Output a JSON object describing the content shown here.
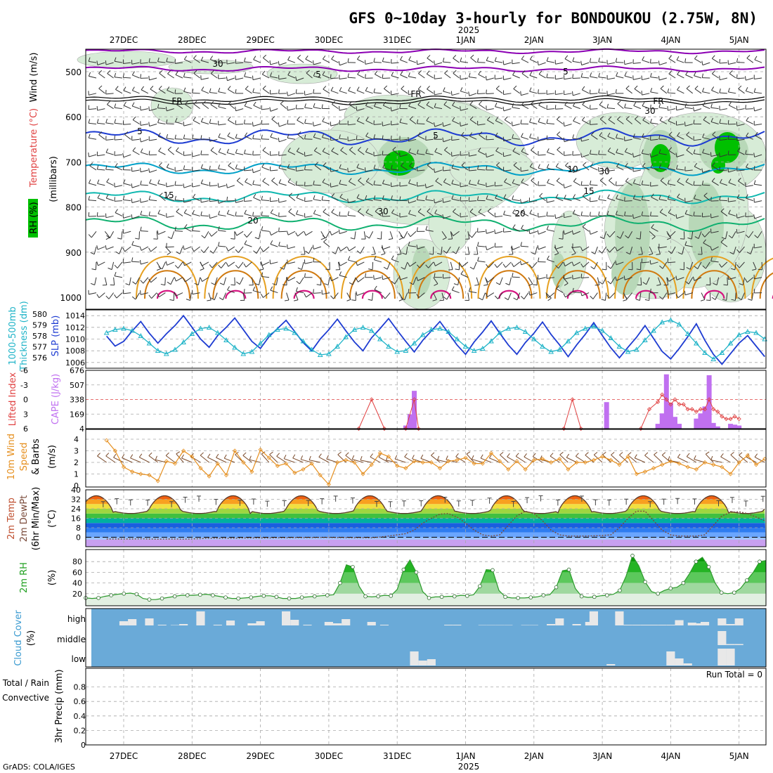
{
  "title": "GFS 0~10day 3-hourly for BONDOUKOU (2.75W, 8N)",
  "year_label": "2025",
  "footer": "GrADS: COLA/IGES",
  "colors": {
    "rh_green": "#00c000",
    "rh_light": "#d7ecd7",
    "rh_gray": "#a8a8a8",
    "t_purple": "#8c00b4",
    "t_blue": "#1e3cd2",
    "t_cyan": "#00a0c8",
    "t_teal": "#00b4a0",
    "t_green": "#10b070",
    "t_orange": "#e6a020",
    "t_orange2": "#d07a10",
    "t_magenta": "#d4137f",
    "slp": "#1e3cd2",
    "thickness": "#20b4c8",
    "cape": "#c070f0",
    "li": "#e04040",
    "wind": "#e69020",
    "temp_line": "#5a3a2a",
    "rh2m": "#2c9a2c",
    "cloud_bg": "#6aaad8",
    "cloud_bar": "#e8e8e8",
    "precip_rain": "#2cb02c",
    "precip_conv": "#e02020"
  },
  "time_axis": {
    "labels": [
      "27DEC",
      "28DEC",
      "29DEC",
      "30DEC",
      "31DEC",
      "1JAN",
      "2JAN",
      "3JAN",
      "4JAN",
      "5JAN"
    ]
  },
  "panels": {
    "upper_air": {
      "label_rh": "RH (%)",
      "label_temp": "Temperature (°C)",
      "label_wind": "Wind (m/s)",
      "label_p": "(millibars)",
      "yticks": [
        "500",
        "600",
        "700",
        "800",
        "900",
        "1000"
      ],
      "contour_labels": [
        "5",
        "5",
        "FR",
        "FR",
        "FR",
        "5",
        "5",
        "10",
        "15",
        "15",
        "20",
        "20",
        "30",
        "30",
        "30",
        "30"
      ]
    },
    "slp": {
      "label_a": "1000-500mb",
      "label_b": "Thickness (dm)",
      "label_c": "SLP (mb)",
      "thickness_ticks": [
        "580",
        "579",
        "578",
        "577",
        "576"
      ],
      "slp_ticks": [
        "1014",
        "1012",
        "1010",
        "1008",
        "1006"
      ]
    },
    "cape": {
      "label_li": "Lifted Index",
      "label_cape": "CAPE (J/kg)",
      "li_ticks": [
        "-6",
        "-3",
        "0",
        "3",
        "6"
      ],
      "cape_ticks": [
        "676",
        "507",
        "338",
        "169",
        "4"
      ]
    },
    "wind10": {
      "label_a": "10m Wind",
      "label_b": "Speed",
      "label_c": "& Barbs",
      "label_unit": "(m/s)",
      "yticks": [
        "4",
        "3",
        "2",
        "1",
        "0"
      ]
    },
    "temp2m": {
      "label_a": "2m Temp",
      "label_b": "2m DewPt",
      "label_c": "(6hr Min/Max)",
      "label_unit": "(°C)",
      "yticks": [
        "40",
        "32",
        "24",
        "16",
        "8",
        "0"
      ]
    },
    "rh2m": {
      "label_a": "2m RH",
      "label_unit": "(%)",
      "yticks": [
        "80",
        "60",
        "40",
        "20"
      ]
    },
    "cloud": {
      "label_a": "Cloud Cover",
      "label_unit": "(%)",
      "levels": [
        "high",
        "middle",
        "low"
      ]
    },
    "precip": {
      "label_a": "Total / Rain",
      "label_b": "Convective",
      "label_c": "3hr Precip (mm)",
      "run_total": "Run Total = 0",
      "yticks": [
        "0.8",
        "0.6",
        "0.4",
        "0.2",
        "0"
      ]
    }
  },
  "chart_data": [
    {
      "type": "line",
      "title": "SLP (mb)",
      "x_unit": "3-hourly steps (0 = 26DEC 18Z)",
      "series": [
        {
          "name": "SLP (mb)",
          "values": [
            1010.5,
            1008.8,
            1009.6,
            1011.4,
            1013.0,
            1011.0,
            1009.3,
            1010.9,
            1012.3,
            1014.0,
            1012.0,
            1010.0,
            1008.6,
            1010.6,
            1012.0,
            1013.6,
            1011.6,
            1009.6,
            1008.4,
            1010.4,
            1011.8,
            1013.2,
            1011.3,
            1009.4,
            1008.0,
            1010.0,
            1011.6,
            1013.4,
            1011.4,
            1009.5,
            1008.0,
            1010.2,
            1011.8,
            1013.5,
            1011.5,
            1009.6,
            1007.8,
            1009.8,
            1011.4,
            1013.0,
            1011.0,
            1009.0,
            1007.4,
            1009.5,
            1011.2,
            1013.1,
            1011.0,
            1009.0,
            1007.4,
            1009.4,
            1011.0,
            1012.9,
            1010.8,
            1009.0,
            1007.0,
            1009.0,
            1010.8,
            1012.8,
            1010.6,
            1008.5,
            1006.8,
            1008.6,
            1010.3,
            1012.3,
            1010.1,
            1007.9,
            1006.6,
            1008.4,
            1010.4,
            1012.6,
            1009.8,
            1007.4,
            1005.7,
            1007.5,
            1009.3,
            1010.6,
            1008.8,
            1007.0,
            1006.0,
            1007.4,
            1008.6,
            1009.8,
            1008.3,
            1007.0,
            1006.3,
            1007.4,
            1008.8,
            1011.0,
            1013.0,
            1010.2,
            1008.0,
            1009.6,
            1009.3,
            1009.0,
            1010.3
          ]
        },
        {
          "name": "1000-500mb Thickness (dm)",
          "values": [
            578.6,
            578.9,
            579.0,
            578.8,
            578.3,
            577.6,
            576.9,
            576.6,
            577.0,
            577.7,
            578.5,
            579.0,
            579.1,
            578.6,
            577.9,
            577.2,
            576.6,
            576.8,
            577.6,
            578.4,
            578.9,
            579.0,
            578.6,
            577.8,
            577.0,
            576.5,
            576.6,
            577.3,
            578.2,
            578.9,
            579.1,
            578.8,
            578.0,
            577.3,
            576.8,
            576.9,
            577.6,
            578.4,
            578.9,
            579.0,
            578.7,
            578.0,
            577.3,
            576.9,
            577.1,
            577.8,
            578.6,
            579.0,
            579.1,
            578.7,
            578.0,
            577.3,
            576.8,
            577.0,
            577.8,
            578.6,
            579.0,
            579.2,
            578.8,
            578.1,
            577.3,
            576.8,
            577.0,
            577.9,
            578.8,
            579.6,
            579.8,
            579.4,
            578.5,
            577.6,
            576.7,
            576.1,
            576.7,
            577.6,
            578.4,
            578.7,
            578.6,
            578.0,
            577.1,
            576.3,
            576.0,
            576.5,
            577.3,
            578.2,
            578.7,
            578.8,
            578.4,
            577.7,
            577.0,
            576.4,
            576.1,
            576.6,
            577.8,
            578.6,
            578.9
          ]
        }
      ],
      "ylim_slp": [
        1005.5,
        1014.5
      ],
      "ylim_thickness": [
        575.5,
        580.5
      ]
    },
    {
      "type": "bar",
      "title": "CAPE (J/kg) / Lifted Index",
      "ylabel": "CAPE (J/kg)",
      "ylim": [
        4,
        676
      ],
      "cape_bars": [
        [
          35,
          40
        ],
        [
          35.5,
          170
        ],
        [
          36,
          440
        ],
        [
          58.5,
          310
        ],
        [
          64.5,
          60
        ],
        [
          65,
          180
        ],
        [
          65.5,
          630
        ],
        [
          66,
          300
        ],
        [
          66.5,
          140
        ],
        [
          67,
          60
        ],
        [
          69,
          120
        ],
        [
          69.5,
          180
        ],
        [
          70,
          260
        ],
        [
          70.5,
          620
        ],
        [
          71,
          70
        ],
        [
          71.5,
          30
        ],
        [
          73,
          60
        ],
        [
          73.5,
          50
        ],
        [
          74,
          40
        ]
      ],
      "lifted_index": [
        [
          29.5,
          6
        ],
        [
          31,
          0
        ],
        [
          32.5,
          6
        ],
        [
          35,
          6
        ],
        [
          36,
          0
        ],
        [
          36.5,
          6
        ],
        [
          53.5,
          6
        ],
        [
          54.5,
          0
        ],
        [
          55.5,
          6
        ],
        [
          62.5,
          6
        ],
        [
          63.5,
          2
        ],
        [
          64.5,
          0.5
        ],
        [
          65,
          -1
        ],
        [
          65.5,
          0
        ],
        [
          66,
          1
        ],
        [
          66.5,
          0
        ],
        [
          67,
          1
        ],
        [
          67.5,
          1
        ],
        [
          68,
          2
        ],
        [
          68.5,
          2
        ],
        [
          69,
          2.5
        ],
        [
          69.5,
          2
        ],
        [
          70,
          2
        ],
        [
          70.5,
          0
        ],
        [
          71,
          2
        ],
        [
          71.5,
          2.5
        ],
        [
          72,
          3.5
        ],
        [
          72.5,
          4
        ],
        [
          73,
          4
        ],
        [
          73.5,
          3.5
        ],
        [
          74,
          4
        ]
      ]
    },
    {
      "type": "line",
      "title": "10m Wind Speed (m/s)",
      "ylim": [
        0,
        4
      ],
      "values": [
        3.9,
        3.0,
        1.6,
        1.2,
        1.0,
        0.9,
        0.4,
        2.1,
        1.9,
        3.0,
        2.5,
        1.5,
        0.8,
        1.9,
        0.9,
        3.0,
        2.0,
        1.2,
        3.1,
        2.4,
        1.7,
        1.9,
        1.1,
        1.4,
        1.9,
        0.9,
        0.1,
        2.0,
        2.2,
        2.0,
        1.0,
        1.8,
        2.8,
        2.5,
        1.7,
        1.5,
        2.1,
        2.0,
        2.0,
        1.5,
        2.1,
        2.2,
        2.4,
        1.9,
        1.9,
        2.8,
        2.1,
        1.4,
        2.1,
        1.4,
        2.2,
        2.3,
        2.0,
        2.3,
        1.4,
        2.0,
        2.0,
        2.2,
        2.5,
        2.2,
        1.8,
        2.5,
        1.0,
        1.2,
        1.5,
        1.8,
        2.1,
        1.9,
        1.6,
        1.4,
        2.0,
        1.8,
        1.6,
        1.0,
        2.0,
        2.6,
        1.8,
        2.3,
        1.6,
        1.9,
        1.6,
        1.1,
        2.1,
        2.1,
        1.9,
        1.7,
        1.8,
        1.9,
        1.3,
        2.0,
        1.8,
        1.9,
        2.0,
        2.0,
        2.0
      ]
    },
    {
      "type": "area",
      "title": "2m Temp / DewPt (°C)",
      "ylim": [
        -8,
        40
      ],
      "temp_cycle": {
        "min": 20,
        "max": 35
      },
      "dewpoint": [
        -1.5,
        -1.5,
        -1.5,
        -1.5,
        -1.3,
        -1.5,
        -1.6,
        -1.5,
        -1.5,
        -1.6,
        -1.4,
        -1.2,
        -0.8,
        -0.8,
        -0.8,
        -0.8,
        -0.6,
        -0.6,
        -0.6,
        -0.6,
        -0.5,
        -0.5,
        -0.3,
        -0.3,
        -0.3,
        -0.2,
        -0.2,
        -0.3,
        -0.3,
        -0.4,
        -0.4,
        -0.5,
        0.2,
        1.0,
        2.0,
        3.0,
        6.0,
        12.0,
        16.0,
        19.5,
        20.0,
        17.0,
        12.0,
        6.0,
        2.0,
        1.0,
        2.0,
        10.0,
        18.0,
        22.0,
        20.0,
        14.0,
        6.0,
        2.0,
        1.0,
        1.0,
        1.0,
        1.2,
        1.5,
        2.0,
        8.0,
        16.0,
        22.0,
        22.0,
        14.0,
        6.0,
        2.0,
        1.0,
        1.0,
        1.0,
        2.0,
        10.0,
        18.0,
        21.0,
        21.5,
        20.0,
        17.0,
        14.0,
        12.0,
        11.0,
        12.0,
        14.0,
        16.0,
        18.0,
        18.5,
        19.0,
        19.0,
        17.0,
        15.0,
        14.0,
        15.0,
        17.0,
        18.5,
        19.0,
        19.5
      ]
    },
    {
      "type": "area",
      "title": "2m RH (%)",
      "ylim": [
        0,
        100
      ],
      "values": [
        12,
        11,
        12,
        15,
        17,
        19,
        20,
        21,
        19,
        11,
        9,
        9,
        11,
        13,
        15,
        17,
        17,
        17,
        18,
        19,
        17,
        15,
        13,
        11,
        11,
        12,
        13,
        15,
        16,
        16,
        14,
        11,
        11,
        11,
        13,
        14,
        15,
        16,
        17,
        18,
        40,
        74,
        70,
        34,
        15,
        14,
        15,
        17,
        16,
        28,
        65,
        83,
        60,
        24,
        12,
        14,
        14,
        15,
        15,
        17,
        16,
        18,
        34,
        65,
        64,
        26,
        14,
        12,
        12,
        12,
        13,
        14,
        17,
        18,
        32,
        63,
        65,
        30,
        15,
        13,
        14,
        16,
        17,
        19,
        26,
        53,
        91,
        72,
        42,
        24,
        20,
        26,
        30,
        32,
        40,
        58,
        80,
        88,
        70,
        40,
        22,
        20,
        22,
        30,
        45,
        60,
        80,
        82
      ]
    },
    {
      "type": "bar",
      "title": "Cloud Cover (%)",
      "levels": [
        "high",
        "middle",
        "low"
      ],
      "high": [
        [
          2,
          12
        ],
        [
          3,
          18
        ],
        [
          5,
          20
        ],
        [
          6.5,
          2
        ],
        [
          8,
          1
        ],
        [
          9,
          4
        ],
        [
          11,
          40
        ],
        [
          13,
          2
        ],
        [
          14.5,
          14
        ],
        [
          17,
          6
        ],
        [
          18,
          12
        ],
        [
          21,
          40
        ],
        [
          22,
          16
        ],
        [
          23.5,
          2
        ],
        [
          26,
          10
        ],
        [
          27,
          6
        ],
        [
          28,
          18
        ],
        [
          31,
          10
        ],
        [
          32.5,
          2
        ],
        [
          40,
          2
        ],
        [
          41,
          2
        ],
        [
          44,
          1
        ],
        [
          45,
          1
        ],
        [
          46,
          1
        ],
        [
          47,
          1
        ],
        [
          49,
          1
        ],
        [
          50,
          1
        ],
        [
          52,
          4
        ],
        [
          53,
          20
        ],
        [
          55,
          4
        ],
        [
          56.5,
          10
        ],
        [
          57,
          40
        ],
        [
          60,
          40
        ],
        [
          61,
          2
        ],
        [
          62,
          2
        ],
        [
          63,
          2
        ],
        [
          64,
          2
        ],
        [
          65,
          2
        ],
        [
          66,
          2
        ],
        [
          67,
          15
        ],
        [
          68.5,
          8
        ],
        [
          69.5,
          6
        ],
        [
          70,
          10
        ],
        [
          72,
          20
        ],
        [
          73,
          4
        ],
        [
          74,
          20
        ]
      ],
      "middle": [
        [
          72,
          40
        ],
        [
          73,
          3
        ],
        [
          74,
          3
        ]
      ],
      "low": [
        [
          36,
          40
        ],
        [
          37,
          14
        ],
        [
          38,
          18
        ],
        [
          59,
          4
        ],
        [
          66,
          40
        ],
        [
          67,
          20
        ],
        [
          68,
          6
        ],
        [
          72,
          48
        ],
        [
          73,
          48
        ]
      ]
    },
    {
      "type": "bar",
      "title": "3hr Precip (mm)",
      "ylim": [
        0,
        1
      ],
      "values": [],
      "run_total": 0
    }
  ]
}
